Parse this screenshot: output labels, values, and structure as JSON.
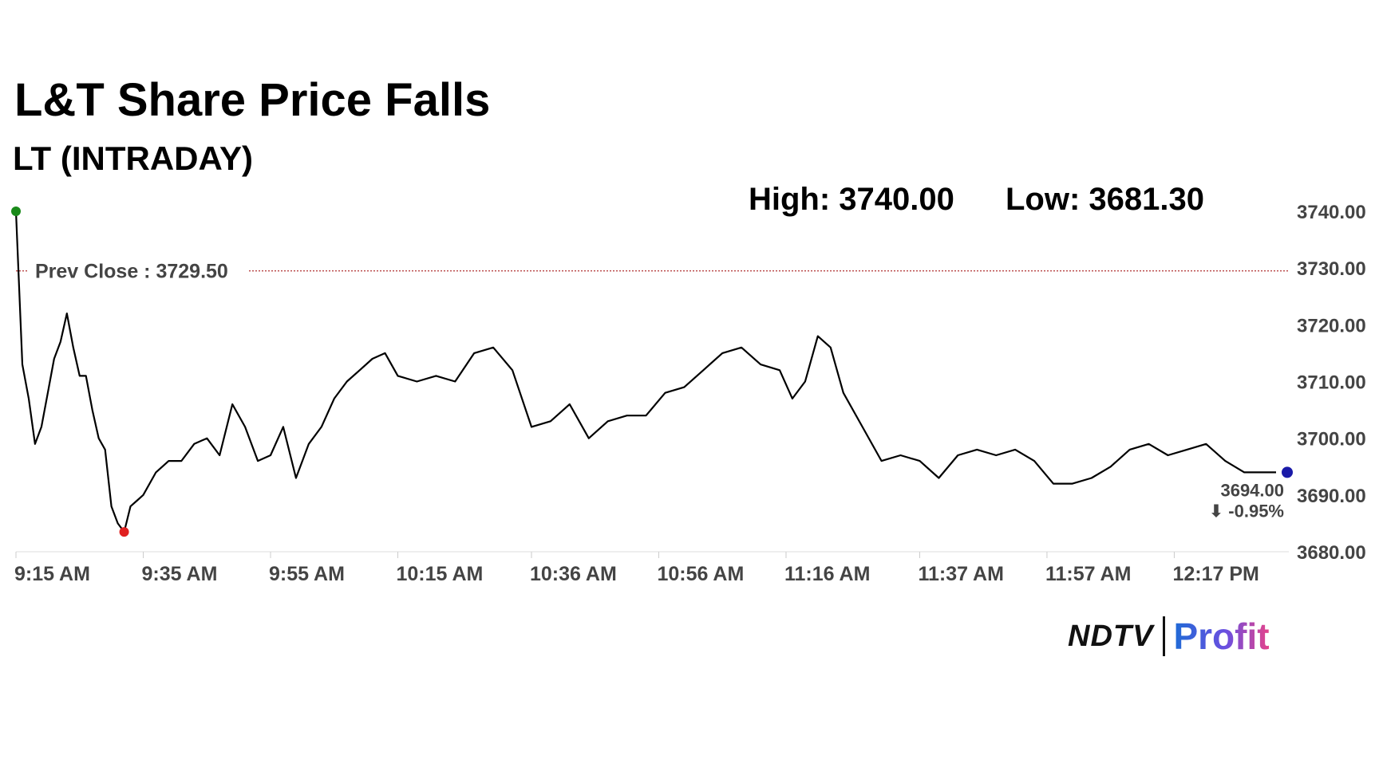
{
  "title": "L&T Share Price Falls",
  "subtitle": "LT (INTRADAY)",
  "high_label": "High: 3740.00",
  "low_label": "Low: 3681.30",
  "prev_close_label": "Prev Close : 3729.50",
  "last_price_label": "3694.00",
  "change_label": "⬇ -0.95%",
  "logo": {
    "ndtv": "NDTV",
    "profit": "Profit"
  },
  "colors": {
    "line": "#000000",
    "prev_close": "#b03030",
    "high_marker": "#1a8a1a",
    "low_marker": "#e02020",
    "last_marker": "#1a1aa8",
    "change": "#d01010",
    "axis_text": "#444444"
  },
  "chart_data": {
    "type": "line",
    "title": "L&T Share Price Falls",
    "subtitle": "LT (INTRADAY)",
    "xlabel": "",
    "ylabel": "",
    "x_ticks": [
      "9:15 AM",
      "9:35 AM",
      "9:55 AM",
      "10:15 AM",
      "10:36 AM",
      "10:56 AM",
      "11:16 AM",
      "11:37 AM",
      "11:57 AM",
      "12:17 PM"
    ],
    "y_ticks": [
      "3740.00",
      "3730.00",
      "3720.00",
      "3710.00",
      "3700.00",
      "3690.00",
      "3680.00"
    ],
    "ylim": [
      3680,
      3740
    ],
    "xlim": [
      "9:15 AM",
      "12:35 PM"
    ],
    "prev_close": 3729.5,
    "high": 3740.0,
    "low": 3681.3,
    "last": 3694.0,
    "change_pct": -0.95,
    "series": [
      {
        "x": [
          "9:15",
          "9:16",
          "9:17",
          "9:18",
          "9:19",
          "9:20",
          "9:21",
          "9:22",
          "9:23",
          "9:24",
          "9:25",
          "9:26",
          "9:27",
          "9:28",
          "9:29",
          "9:30",
          "9:31",
          "9:32",
          "9:33",
          "9:34",
          "9:35",
          "9:37",
          "9:39",
          "9:41",
          "9:43",
          "9:45",
          "9:47",
          "9:49",
          "9:51",
          "9:53",
          "9:55",
          "9:57",
          "9:59",
          "10:01",
          "10:03",
          "10:05",
          "10:07",
          "10:09",
          "10:11",
          "10:13",
          "10:15",
          "10:18",
          "10:21",
          "10:24",
          "10:27",
          "10:30",
          "10:33",
          "10:36",
          "10:39",
          "10:42",
          "10:45",
          "10:48",
          "10:51",
          "10:54",
          "10:57",
          "11:00",
          "11:03",
          "11:06",
          "11:09",
          "11:12",
          "11:15",
          "11:17",
          "11:19",
          "11:21",
          "11:23",
          "11:25",
          "11:28",
          "11:31",
          "11:34",
          "11:37",
          "11:40",
          "11:43",
          "11:46",
          "11:49",
          "11:52",
          "11:55",
          "11:58",
          "12:01",
          "12:04",
          "12:07",
          "12:10",
          "12:13",
          "12:16",
          "12:19",
          "12:22",
          "12:25",
          "12:28",
          "12:31",
          "12:33"
        ],
        "y": [
          3740.0,
          3713.0,
          3707.0,
          3699.0,
          3702.0,
          3708.0,
          3714.0,
          3717.0,
          3722.0,
          3716.0,
          3711.0,
          3711.0,
          3705.0,
          3700.0,
          3698.0,
          3688.0,
          3685.0,
          3683.5,
          3688.0,
          3689.0,
          3690.0,
          3694.0,
          3696.0,
          3696.0,
          3699.0,
          3700.0,
          3697.0,
          3706.0,
          3702.0,
          3696.0,
          3697.0,
          3702.0,
          3693.0,
          3699.0,
          3702.0,
          3707.0,
          3710.0,
          3712.0,
          3714.0,
          3715.0,
          3711.0,
          3710.0,
          3711.0,
          3710.0,
          3715.0,
          3716.0,
          3712.0,
          3702.0,
          3703.0,
          3706.0,
          3700.0,
          3703.0,
          3704.0,
          3704.0,
          3708.0,
          3709.0,
          3712.0,
          3715.0,
          3716.0,
          3713.0,
          3712.0,
          3707.0,
          3710.0,
          3718.0,
          3716.0,
          3708.0,
          3702.0,
          3696.0,
          3697.0,
          3696.0,
          3693.0,
          3697.0,
          3698.0,
          3697.0,
          3698.0,
          3696.0,
          3692.0,
          3692.0,
          3693.0,
          3695.0,
          3698.0,
          3699.0,
          3697.0,
          3698.0,
          3699.0,
          3696.0,
          3694.0,
          3694.0,
          3694.0
        ]
      }
    ]
  }
}
